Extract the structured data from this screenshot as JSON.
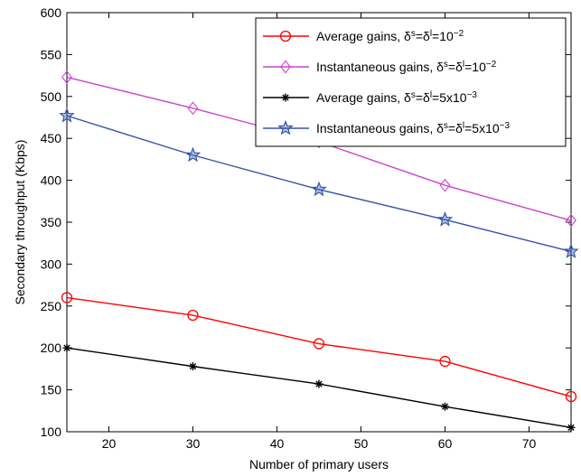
{
  "chart_data": {
    "type": "line",
    "title": "",
    "xlabel": "Number of primary users",
    "ylabel": "Secondary throughput (Kbps)",
    "xlim": [
      15,
      75
    ],
    "ylim": [
      100,
      600
    ],
    "xticks": [
      20,
      30,
      40,
      50,
      60,
      70
    ],
    "yticks": [
      100,
      150,
      200,
      250,
      300,
      350,
      400,
      450,
      500,
      550,
      600
    ],
    "grid": false,
    "legend_position": "top-right",
    "x": [
      15,
      30,
      45,
      60,
      75
    ],
    "series": [
      {
        "name_text": "Average gains, ",
        "name_delta": "δ",
        "name_sup1": "s",
        "name_eq": "=",
        "name_sup2": "l",
        "name_val": "=10",
        "name_exp": "−2",
        "color": "#ff0000",
        "marker": "circle",
        "values": [
          260,
          239,
          205,
          184,
          142
        ]
      },
      {
        "name_text": "Instantaneous gains, ",
        "name_delta": "δ",
        "name_sup1": "s",
        "name_eq": "=",
        "name_sup2": "l",
        "name_val": "=10",
        "name_exp": "−2",
        "color": "#cc44cc",
        "marker": "diamond",
        "values": [
          523,
          486,
          446,
          394,
          352
        ]
      },
      {
        "name_text": "Average gains, ",
        "name_delta": "δ",
        "name_sup1": "s",
        "name_eq": "=",
        "name_sup2": "l",
        "name_val": "=5x10",
        "name_exp": "−3",
        "color": "#000000",
        "marker": "asterisk",
        "values": [
          200,
          178,
          157,
          130,
          105
        ]
      },
      {
        "name_text": "Instantaneous gains, ",
        "name_delta": "δ",
        "name_sup1": "s",
        "name_eq": "=",
        "name_sup2": "l",
        "name_val": "=5x10",
        "name_exp": "−3",
        "color": "#3355aa",
        "marker": "star",
        "values": [
          477,
          430,
          389,
          353,
          315
        ]
      }
    ]
  }
}
